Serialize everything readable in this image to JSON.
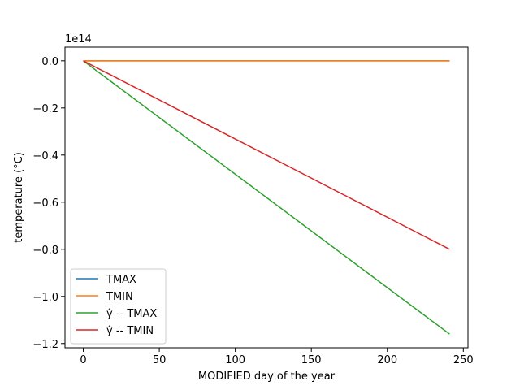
{
  "chart_data": {
    "type": "line",
    "title": "",
    "xlabel": "MODIFIED day of the year",
    "ylabel": "temperature (°C)",
    "offset_label": "1e14",
    "y_scale_factor": 100000000000000.0,
    "xlim": [
      -12.05,
      253.05
    ],
    "ylim": [
      -1.218,
      0.058
    ],
    "x_ticks": [
      0,
      50,
      100,
      150,
      200,
      250
    ],
    "x_tick_labels": [
      "0",
      "50",
      "100",
      "150",
      "200",
      "250"
    ],
    "y_ticks": [
      0.0,
      -0.2,
      -0.4,
      -0.6,
      -0.8,
      -1.0,
      -1.2
    ],
    "y_tick_labels": [
      "0.0",
      "−0.2",
      "−0.4",
      "−0.6",
      "−0.8",
      "−1.0",
      "−1.2"
    ],
    "grid": false,
    "legend_position": "lower-left",
    "series": [
      {
        "name": "TMAX",
        "color": "#1f77b4",
        "x": [
          0,
          241
        ],
        "y": [
          0.0,
          0.0
        ]
      },
      {
        "name": "TMIN",
        "color": "#ff7f0e",
        "x": [
          0,
          241
        ],
        "y": [
          0.0,
          0.0
        ]
      },
      {
        "name": "ŷ -- TMAX",
        "color": "#2ca02c",
        "x": [
          0,
          241
        ],
        "y": [
          0.0,
          -1.16
        ]
      },
      {
        "name": "ŷ -- TMIN",
        "color": "#d62728",
        "x": [
          0,
          241
        ],
        "y": [
          0.0,
          -0.8
        ]
      }
    ]
  }
}
